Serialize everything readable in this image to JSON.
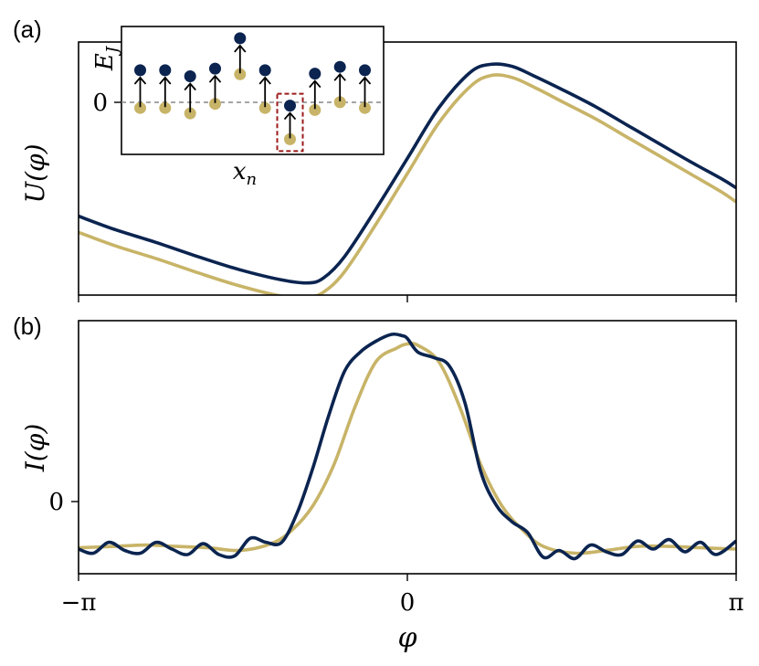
{
  "figure": {
    "panel_a_label": "(a)",
    "panel_b_label": "(b)",
    "x_label": "φ",
    "x_ticks": [
      "−π",
      "0",
      "π"
    ],
    "colors": {
      "dark": "#0b2450",
      "gold": "#c8b468",
      "red_box": "#9b1b1b",
      "dashed": "#888888"
    }
  },
  "chart_data": [
    {
      "type": "line",
      "panel": "a",
      "ylabel": "U(φ)",
      "xlim": [
        -3.14159,
        3.14159
      ],
      "ylim": [
        -1.2,
        1.3
      ],
      "grid": false,
      "series": [
        {
          "color": "dark",
          "x": [
            -3.14159,
            -2.8,
            -2.4,
            -2.0,
            -1.6,
            -1.2,
            -0.95,
            -0.8,
            -0.6,
            -0.3,
            0,
            0.3,
            0.6,
            0.8,
            1.0,
            1.2,
            1.5,
            1.8,
            2.1,
            2.4,
            2.7,
            3.0,
            3.14159
          ],
          "y": [
            -0.42,
            -0.55,
            -0.68,
            -0.82,
            -0.95,
            -1.05,
            -1.08,
            -1.03,
            -0.82,
            -0.35,
            0.15,
            0.65,
            1.0,
            1.08,
            1.06,
            0.97,
            0.82,
            0.66,
            0.48,
            0.3,
            0.12,
            -0.05,
            -0.14
          ]
        },
        {
          "color": "gold",
          "x": [
            -3.14159,
            -2.8,
            -2.4,
            -2.0,
            -1.6,
            -1.2,
            -0.95,
            -0.8,
            -0.6,
            -0.3,
            0,
            0.3,
            0.6,
            0.8,
            1.0,
            1.2,
            1.5,
            1.8,
            2.1,
            2.4,
            2.7,
            3.0,
            3.14159
          ],
          "y": [
            -0.58,
            -0.71,
            -0.84,
            -0.98,
            -1.11,
            -1.21,
            -1.22,
            -1.17,
            -0.97,
            -0.5,
            0.0,
            0.5,
            0.86,
            0.97,
            0.95,
            0.86,
            0.7,
            0.54,
            0.36,
            0.18,
            0.0,
            -0.18,
            -0.28
          ]
        }
      ],
      "inset": {
        "xlabel": "x_n",
        "ylabel": "E_J",
        "ytick": "0",
        "top_values": [
          1.0,
          1.0,
          0.82,
          1.05,
          1.95,
          1.0,
          -0.05,
          0.9,
          1.1,
          1.0
        ],
        "bottom_values": [
          -0.12,
          -0.12,
          -0.28,
          0.0,
          0.88,
          -0.12,
          -1.05,
          -0.18,
          0.05,
          -0.12
        ],
        "highlight_index": 6,
        "ylim": [
          -1.5,
          2.3
        ]
      }
    },
    {
      "type": "line",
      "panel": "b",
      "ylabel": "I(φ)",
      "ytick": "0",
      "xlim": [
        -3.14159,
        3.14159
      ],
      "ylim": [
        -0.5,
        1.35
      ],
      "grid": false,
      "series": [
        {
          "color": "gold",
          "x": [
            -3.14159,
            -2.8,
            -2.5,
            -2.2,
            -1.9,
            -1.6,
            -1.3,
            -1.1,
            -0.9,
            -0.7,
            -0.5,
            -0.3,
            -0.1,
            0.0,
            0.1,
            0.3,
            0.5,
            0.7,
            0.9,
            1.1,
            1.3,
            1.6,
            1.9,
            2.2,
            2.5,
            2.8,
            3.14159
          ],
          "y": [
            -0.31,
            -0.3,
            -0.29,
            -0.3,
            -0.31,
            -0.33,
            -0.28,
            -0.18,
            0.0,
            0.3,
            0.72,
            1.05,
            1.15,
            1.18,
            1.17,
            1.05,
            0.72,
            0.3,
            0.0,
            -0.18,
            -0.3,
            -0.35,
            -0.33,
            -0.3,
            -0.3,
            -0.31,
            -0.32
          ]
        },
        {
          "color": "dark",
          "x": [
            -3.14159,
            -3.0,
            -2.85,
            -2.7,
            -2.55,
            -2.4,
            -2.25,
            -2.1,
            -1.95,
            -1.8,
            -1.65,
            -1.5,
            -1.35,
            -1.2,
            -1.05,
            -0.9,
            -0.75,
            -0.6,
            -0.45,
            -0.3,
            -0.15,
            -0.05,
            0.0,
            0.1,
            0.25,
            0.4,
            0.55,
            0.7,
            0.85,
            1.0,
            1.15,
            1.3,
            1.45,
            1.6,
            1.75,
            1.9,
            2.05,
            2.2,
            2.35,
            2.5,
            2.65,
            2.8,
            2.95,
            3.14159
          ],
          "y": [
            -0.32,
            -0.35,
            -0.27,
            -0.33,
            -0.35,
            -0.27,
            -0.32,
            -0.36,
            -0.28,
            -0.36,
            -0.37,
            -0.24,
            -0.27,
            -0.27,
            -0.05,
            0.28,
            0.66,
            0.98,
            1.12,
            1.2,
            1.25,
            1.24,
            1.22,
            1.12,
            1.08,
            1.02,
            0.75,
            0.25,
            0.0,
            -0.12,
            -0.2,
            -0.38,
            -0.33,
            -0.39,
            -0.29,
            -0.34,
            -0.36,
            -0.26,
            -0.32,
            -0.25,
            -0.34,
            -0.27,
            -0.36,
            -0.26
          ]
        }
      ]
    }
  ]
}
